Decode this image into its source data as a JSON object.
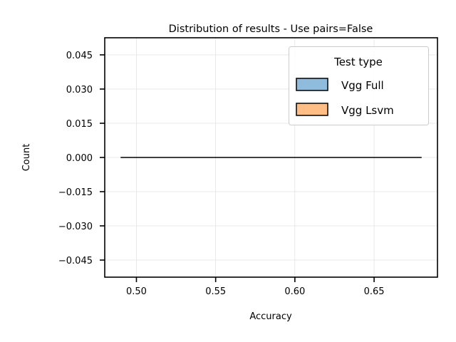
{
  "chart_data": {
    "type": "line",
    "title": "Distribution of results - Use pairs=False",
    "xlabel": "Accuracy",
    "ylabel": "Count",
    "xlim": [
      0.48,
      0.69
    ],
    "ylim": [
      -0.0525,
      0.0525
    ],
    "x_ticks": [
      0.5,
      0.55,
      0.6,
      0.65
    ],
    "x_tick_labels": [
      "0.50",
      "0.55",
      "0.60",
      "0.65"
    ],
    "y_ticks": [
      0.045,
      0.03,
      0.015,
      0.0,
      -0.015,
      -0.03,
      -0.045
    ],
    "y_tick_labels": [
      "0.045",
      "0.030",
      "0.015",
      "0.000",
      "−0.015",
      "−0.030",
      "−0.045"
    ],
    "grid": true,
    "legend": {
      "title": "Test type",
      "placement": "top-right",
      "entries": [
        {
          "label": "Vgg Full",
          "color": "#8fbbdc"
        },
        {
          "label": "Vgg Lsvm",
          "color": "#ffbe86"
        }
      ]
    },
    "series": [
      {
        "color": "#000000",
        "x": [
          0.49,
          0.68
        ],
        "y": [
          0.0,
          0.0
        ]
      }
    ]
  }
}
